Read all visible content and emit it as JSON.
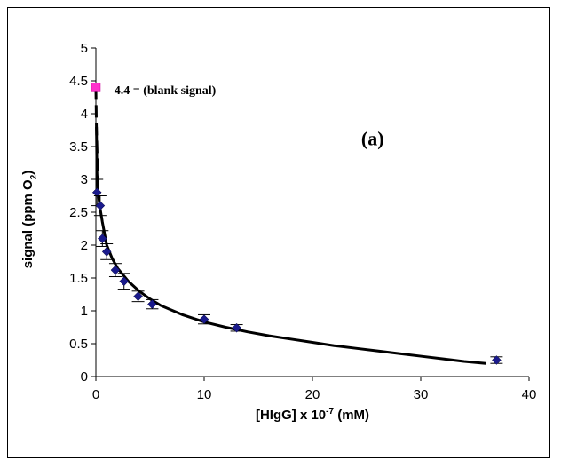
{
  "chart_data": {
    "type": "scatter",
    "title": "",
    "xlabel": "[HIgG] x 10",
    "xlabel_sup": "-7",
    "xlabel_unit": " (mM)",
    "ylabel": "signal (ppm O",
    "ylabel_sub": "2",
    "ylabel_end": ")",
    "xlim": [
      0,
      40
    ],
    "ylim": [
      0,
      5
    ],
    "x_ticks": [
      "0",
      "10",
      "20",
      "30",
      "40"
    ],
    "y_ticks": [
      "0",
      "0.5",
      "1",
      "1.5",
      "2",
      "2.5",
      "3",
      "3.5",
      "4",
      "4.5",
      "5"
    ],
    "grid": false,
    "series": [
      {
        "marker": "diamond",
        "color": "#1a1a8c",
        "points": [
          {
            "x": 0.1,
            "y": 2.8,
            "err": 0.2
          },
          {
            "x": 0.4,
            "y": 2.6,
            "err": 0.15
          },
          {
            "x": 0.6,
            "y": 2.1,
            "err": 0.12
          },
          {
            "x": 1.0,
            "y": 1.9,
            "err": 0.12
          },
          {
            "x": 1.8,
            "y": 1.62,
            "err": 0.1
          },
          {
            "x": 2.6,
            "y": 1.45,
            "err": 0.12
          },
          {
            "x": 3.9,
            "y": 1.22,
            "err": 0.08
          },
          {
            "x": 5.2,
            "y": 1.1,
            "err": 0.07
          },
          {
            "x": 10.0,
            "y": 0.87,
            "err": 0.07
          },
          {
            "x": 13.0,
            "y": 0.74,
            "err": 0.05
          },
          {
            "x": 37.0,
            "y": 0.25,
            "err": 0.05
          }
        ]
      },
      {
        "marker": "square",
        "color": "#ff33cc",
        "points": [
          {
            "x": 0.0,
            "y": 4.4
          }
        ]
      }
    ],
    "fit_curve": {
      "color": "#000000",
      "points": [
        [
          0.05,
          3.8
        ],
        [
          0.1,
          3.1
        ],
        [
          0.2,
          2.8
        ],
        [
          0.4,
          2.55
        ],
        [
          0.6,
          2.35
        ],
        [
          1.0,
          2.0
        ],
        [
          1.5,
          1.8
        ],
        [
          2,
          1.65
        ],
        [
          3,
          1.45
        ],
        [
          4,
          1.3
        ],
        [
          5,
          1.18
        ],
        [
          6,
          1.08
        ],
        [
          8,
          0.94
        ],
        [
          10,
          0.83
        ],
        [
          12,
          0.75
        ],
        [
          14,
          0.68
        ],
        [
          16,
          0.62
        ],
        [
          18,
          0.57
        ],
        [
          20,
          0.52
        ],
        [
          22,
          0.47
        ],
        [
          24,
          0.43
        ],
        [
          26,
          0.39
        ],
        [
          28,
          0.35
        ],
        [
          30,
          0.31
        ],
        [
          32,
          0.27
        ],
        [
          34,
          0.23
        ],
        [
          36,
          0.2
        ]
      ]
    },
    "dash_segment": {
      "points": [
        [
          0.0,
          4.4
        ],
        [
          0.05,
          3.8
        ],
        [
          0.2,
          2.9
        ]
      ]
    },
    "annotations": [
      {
        "text": "4.4 = (blank signal)",
        "x": 1.7,
        "y": 4.3,
        "size": 14
      },
      {
        "text": "(a)",
        "x": 24.5,
        "y": 3.52,
        "size": 22
      }
    ]
  }
}
